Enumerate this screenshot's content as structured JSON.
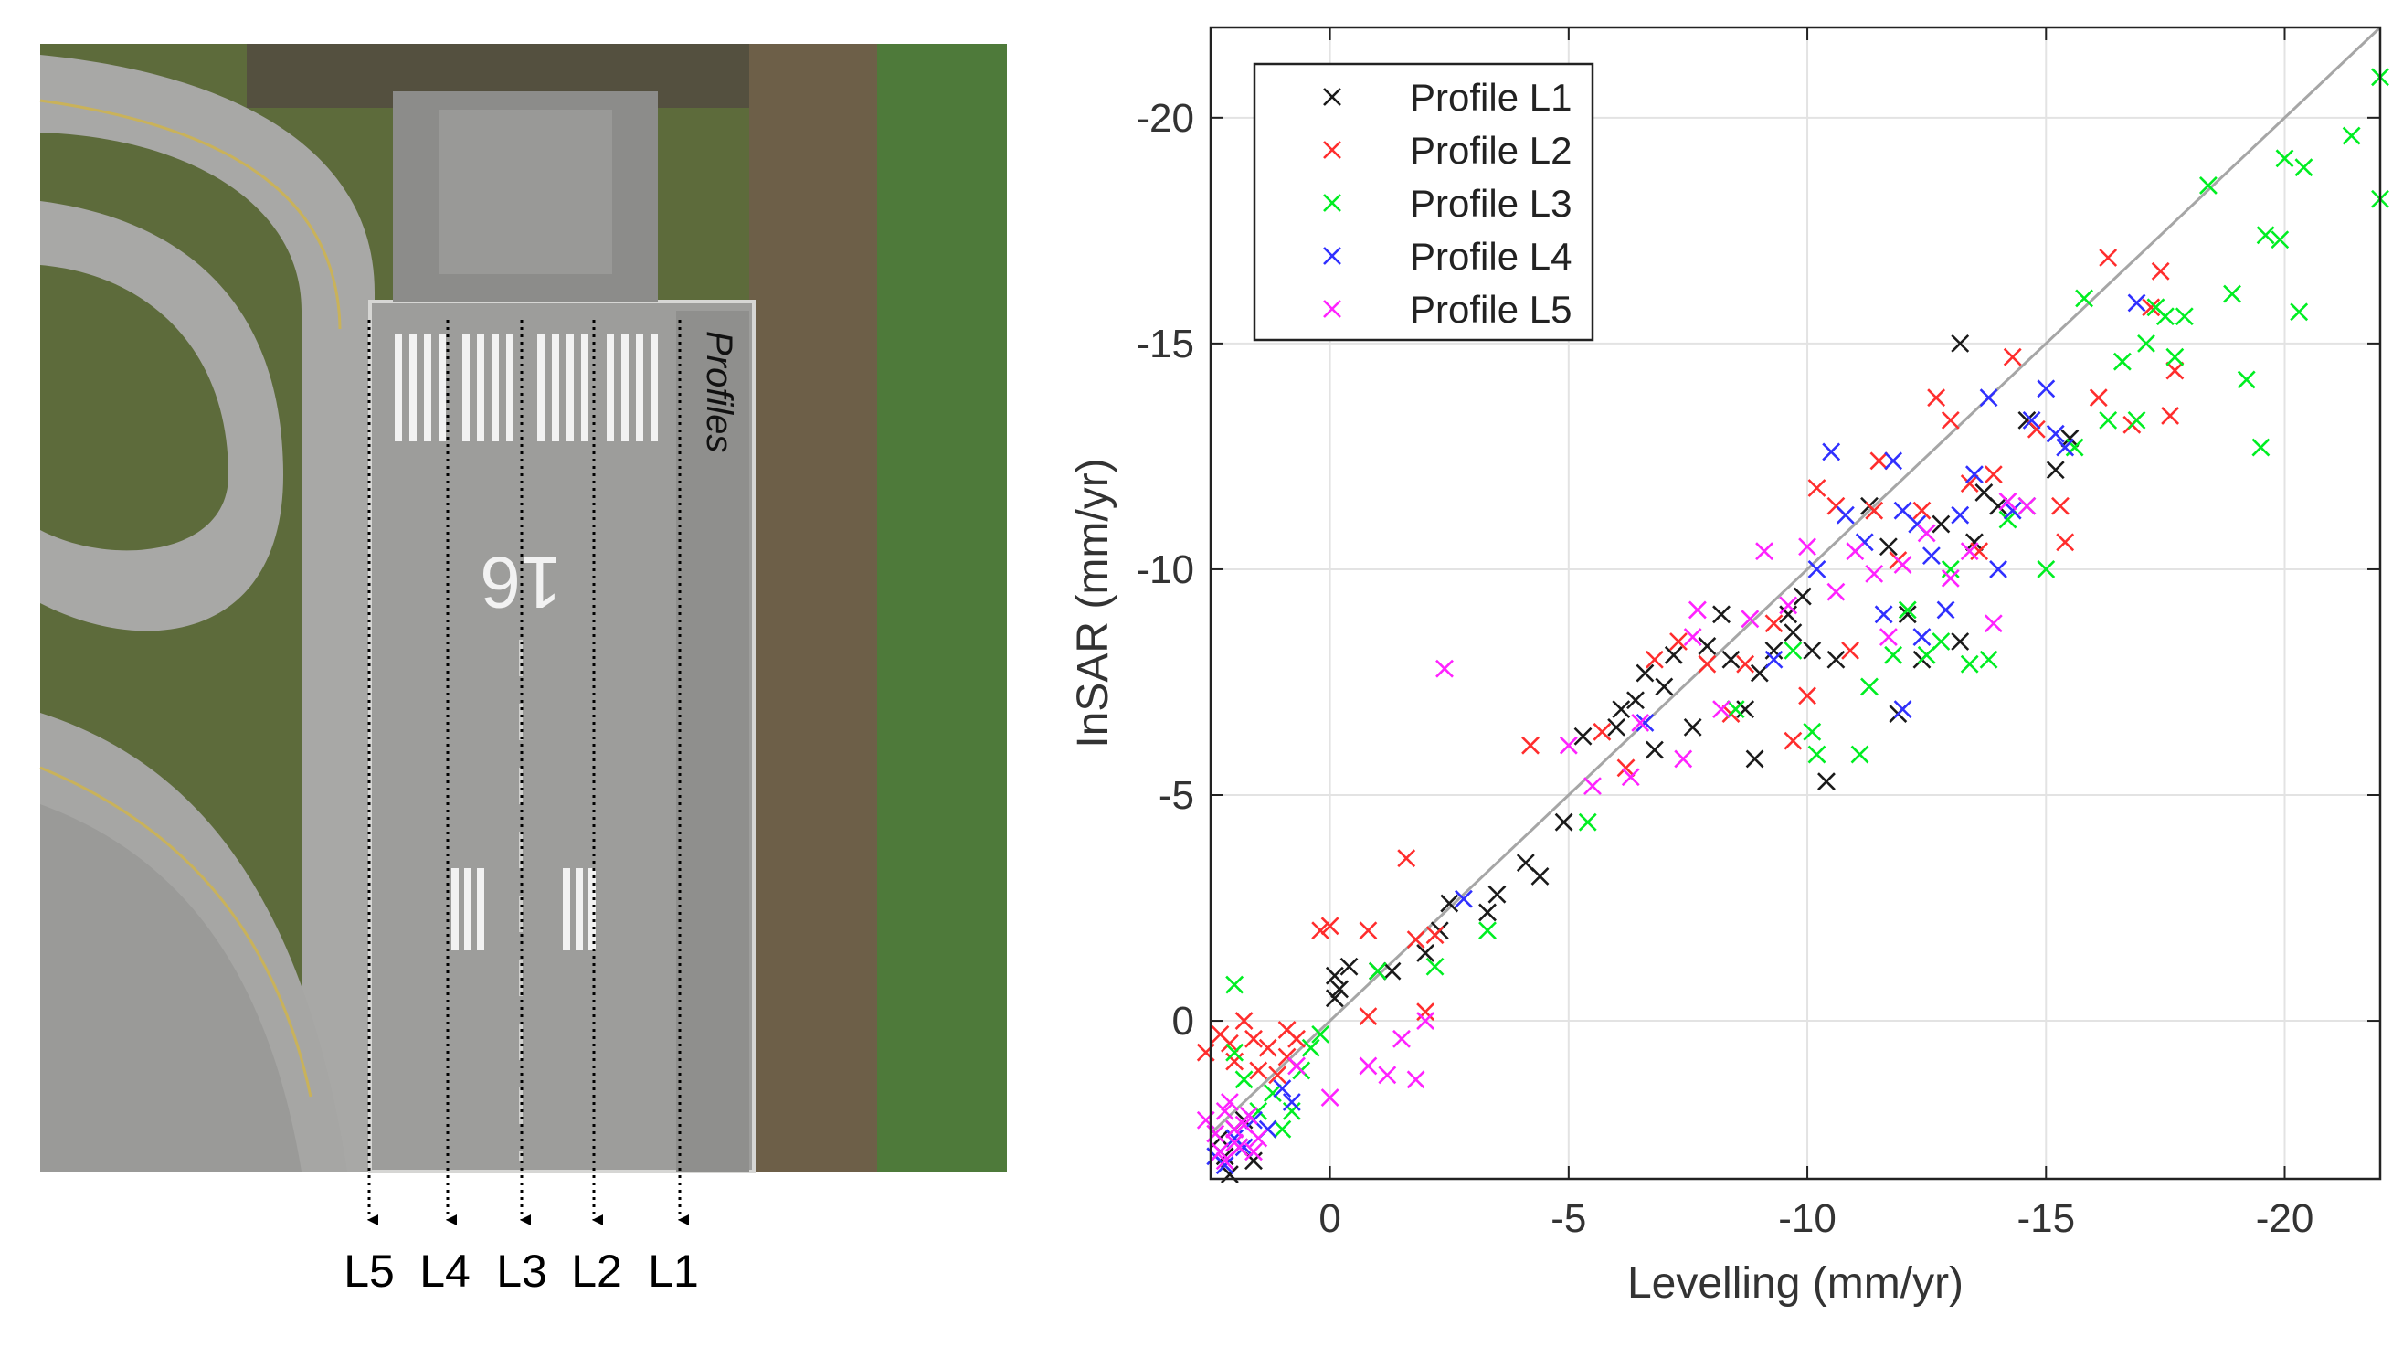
{
  "figure": {
    "profiles_label": "Profiles",
    "profile_markers": [
      "L5",
      "L4",
      "L3",
      "L2",
      "L1"
    ],
    "runway_number": "16",
    "colors": {
      "grass_dark": "#5b6a3a",
      "grass_green": "#4f7d3b",
      "soil": "#6e5e47",
      "pavement": "#a9a9a7",
      "runway": "#9c9c9a",
      "marking": "#ffffff"
    }
  },
  "chart_data": {
    "type": "scatter",
    "title": "",
    "xlabel": "Levelling (mm/yr)",
    "ylabel": "InSAR (mm/yr)",
    "xlim": [
      2.5,
      -22
    ],
    "ylim": [
      3.5,
      -22
    ],
    "xticks": [
      0,
      -5,
      -10,
      -15,
      -20
    ],
    "yticks": [
      0,
      -5,
      -10,
      -15,
      -20
    ],
    "grid": true,
    "legend_position": "top-left",
    "reference_line": {
      "from": [
        2.5,
        2.5
      ],
      "to": [
        -22,
        -22
      ],
      "color": "#a6a6a6"
    },
    "series": [
      {
        "name": "Profile L1",
        "color": "#1a1a1a",
        "points": [
          [
            2.1,
            3.4
          ],
          [
            2.2,
            3.0
          ],
          [
            1.9,
            2.8
          ],
          [
            2.3,
            2.6
          ],
          [
            1.6,
            3.1
          ],
          [
            2.0,
            2.4
          ],
          [
            1.8,
            2.2
          ],
          [
            -0.1,
            -1.0
          ],
          [
            -0.2,
            -0.7
          ],
          [
            -0.4,
            -1.2
          ],
          [
            -0.1,
            -0.5
          ],
          [
            -1.0,
            -1.1
          ],
          [
            -1.3,
            -1.1
          ],
          [
            -2.0,
            -1.5
          ],
          [
            -2.3,
            -2.0
          ],
          [
            -2.5,
            -2.6
          ],
          [
            -3.3,
            -2.4
          ],
          [
            -3.5,
            -2.8
          ],
          [
            -4.1,
            -3.5
          ],
          [
            -4.4,
            -3.2
          ],
          [
            -4.9,
            -4.4
          ],
          [
            -5.3,
            -6.3
          ],
          [
            -6.0,
            -6.5
          ],
          [
            -6.1,
            -6.9
          ],
          [
            -6.4,
            -7.1
          ],
          [
            -6.6,
            -7.7
          ],
          [
            -7.0,
            -7.4
          ],
          [
            -6.8,
            -6.0
          ],
          [
            -7.2,
            -8.1
          ],
          [
            -7.6,
            -6.5
          ],
          [
            -7.9,
            -8.3
          ],
          [
            -8.4,
            -8.0
          ],
          [
            -8.2,
            -9.0
          ],
          [
            -8.7,
            -6.9
          ],
          [
            -8.9,
            -5.8
          ],
          [
            -9.0,
            -7.7
          ],
          [
            -9.3,
            -8.2
          ],
          [
            -9.6,
            -9.0
          ],
          [
            -9.7,
            -8.6
          ],
          [
            -9.9,
            -9.4
          ],
          [
            -10.1,
            -8.2
          ],
          [
            -10.4,
            -5.3
          ],
          [
            -10.6,
            -8.0
          ],
          [
            -11.3,
            -11.4
          ],
          [
            -11.7,
            -10.5
          ],
          [
            -11.9,
            -6.8
          ],
          [
            -12.1,
            -9.0
          ],
          [
            -12.4,
            -8.0
          ],
          [
            -12.8,
            -11.0
          ],
          [
            -13.2,
            -8.4
          ],
          [
            -13.5,
            -10.6
          ],
          [
            -13.2,
            -15.0
          ],
          [
            -13.7,
            -11.7
          ],
          [
            -14.0,
            -11.4
          ],
          [
            -14.6,
            -13.3
          ],
          [
            -15.2,
            -12.2
          ],
          [
            -15.5,
            -12.9
          ]
        ]
      },
      {
        "name": "Profile L2",
        "color": "#ff2d2d",
        "points": [
          [
            2.6,
            0.7
          ],
          [
            2.3,
            0.3
          ],
          [
            2.1,
            0.5
          ],
          [
            2.0,
            0.9
          ],
          [
            1.8,
            0.0
          ],
          [
            1.6,
            0.4
          ],
          [
            1.5,
            1.1
          ],
          [
            1.3,
            0.6
          ],
          [
            1.1,
            1.2
          ],
          [
            0.9,
            0.8
          ],
          [
            0.7,
            0.4
          ],
          [
            0.9,
            0.2
          ],
          [
            0.2,
            -2.0
          ],
          [
            0.0,
            -2.1
          ],
          [
            -0.8,
            -2.0
          ],
          [
            -0.8,
            -0.1
          ],
          [
            -1.6,
            -3.6
          ],
          [
            -1.8,
            -1.8
          ],
          [
            -2.0,
            -0.2
          ],
          [
            -2.2,
            -1.9
          ],
          [
            -4.2,
            -6.1
          ],
          [
            -5.7,
            -6.4
          ],
          [
            -6.2,
            -5.6
          ],
          [
            -6.8,
            -8.0
          ],
          [
            -7.3,
            -8.4
          ],
          [
            -7.9,
            -7.9
          ],
          [
            -8.4,
            -6.8
          ],
          [
            -8.7,
            -7.9
          ],
          [
            -9.3,
            -8.8
          ],
          [
            -9.7,
            -6.2
          ],
          [
            -10.0,
            -7.2
          ],
          [
            -10.2,
            -11.8
          ],
          [
            -10.6,
            -11.4
          ],
          [
            -10.9,
            -8.2
          ],
          [
            -11.4,
            -11.3
          ],
          [
            -11.5,
            -12.4
          ],
          [
            -11.9,
            -10.2
          ],
          [
            -12.4,
            -11.3
          ],
          [
            -12.7,
            -13.8
          ],
          [
            -13.0,
            -13.3
          ],
          [
            -13.4,
            -11.9
          ],
          [
            -13.6,
            -10.4
          ],
          [
            -13.9,
            -12.1
          ],
          [
            -14.3,
            -14.7
          ],
          [
            -14.8,
            -13.1
          ],
          [
            -15.3,
            -11.4
          ],
          [
            -15.4,
            -10.6
          ],
          [
            -16.1,
            -13.8
          ],
          [
            -16.3,
            -16.9
          ],
          [
            -16.8,
            -13.2
          ],
          [
            -17.2,
            -15.8
          ],
          [
            -17.4,
            -16.6
          ],
          [
            -17.7,
            -14.4
          ],
          [
            -17.6,
            -13.4
          ]
        ]
      },
      {
        "name": "Profile L3",
        "color": "#00ee22",
        "points": [
          [
            2.0,
            -0.8
          ],
          [
            2.0,
            0.7
          ],
          [
            1.8,
            1.3
          ],
          [
            1.5,
            2.0
          ],
          [
            1.2,
            1.6
          ],
          [
            1.0,
            2.4
          ],
          [
            0.8,
            2.0
          ],
          [
            0.6,
            1.1
          ],
          [
            0.4,
            0.6
          ],
          [
            0.2,
            0.3
          ],
          [
            -1.0,
            -1.1
          ],
          [
            -2.2,
            -1.2
          ],
          [
            -3.3,
            -2.0
          ],
          [
            -5.4,
            -4.4
          ],
          [
            -8.5,
            -6.9
          ],
          [
            -9.7,
            -8.2
          ],
          [
            -10.1,
            -6.4
          ],
          [
            -10.2,
            -5.9
          ],
          [
            -11.1,
            -5.9
          ],
          [
            -11.3,
            -7.4
          ],
          [
            -11.8,
            -8.1
          ],
          [
            -12.1,
            -9.1
          ],
          [
            -12.5,
            -8.1
          ],
          [
            -12.8,
            -8.4
          ],
          [
            -13.0,
            -10.0
          ],
          [
            -13.4,
            -7.9
          ],
          [
            -13.8,
            -8.0
          ],
          [
            -14.2,
            -11.1
          ],
          [
            -14.6,
            -11.4
          ],
          [
            -15.0,
            -10.0
          ],
          [
            -15.6,
            -12.7
          ],
          [
            -15.8,
            -16.0
          ],
          [
            -16.3,
            -13.3
          ],
          [
            -16.6,
            -14.6
          ],
          [
            -16.9,
            -13.3
          ],
          [
            -17.1,
            -15.0
          ],
          [
            -17.3,
            -15.8
          ],
          [
            -17.5,
            -15.6
          ],
          [
            -17.7,
            -14.7
          ],
          [
            -17.9,
            -15.6
          ],
          [
            -18.4,
            -18.5
          ],
          [
            -18.9,
            -16.1
          ],
          [
            -19.2,
            -14.2
          ],
          [
            -19.5,
            -12.7
          ],
          [
            -19.6,
            -17.4
          ],
          [
            -19.9,
            -17.3
          ],
          [
            -20.0,
            -19.1
          ],
          [
            -20.3,
            -15.7
          ],
          [
            -20.4,
            -18.9
          ],
          [
            -21.4,
            -19.6
          ],
          [
            -22.0,
            -18.2
          ],
          [
            -22.0,
            -20.9
          ]
        ]
      },
      {
        "name": "Profile L4",
        "color": "#3030ff",
        "points": [
          [
            2.4,
            3.0
          ],
          [
            2.2,
            3.2
          ],
          [
            2.0,
            2.6
          ],
          [
            1.8,
            2.8
          ],
          [
            1.6,
            2.2
          ],
          [
            1.3,
            2.4
          ],
          [
            1.0,
            1.5
          ],
          [
            0.8,
            1.8
          ],
          [
            -2.8,
            -2.7
          ],
          [
            -6.6,
            -6.6
          ],
          [
            -9.3,
            -8.0
          ],
          [
            -10.2,
            -10.0
          ],
          [
            -10.5,
            -12.6
          ],
          [
            -10.8,
            -11.2
          ],
          [
            -11.2,
            -10.6
          ],
          [
            -11.6,
            -9.0
          ],
          [
            -11.8,
            -12.4
          ],
          [
            -12.0,
            -11.3
          ],
          [
            -12.3,
            -11.0
          ],
          [
            -12.4,
            -8.5
          ],
          [
            -12.6,
            -10.3
          ],
          [
            -12.9,
            -9.1
          ],
          [
            -13.2,
            -11.2
          ],
          [
            -13.5,
            -12.1
          ],
          [
            -13.8,
            -13.8
          ],
          [
            -14.0,
            -10.0
          ],
          [
            -14.3,
            -11.3
          ],
          [
            -14.7,
            -13.3
          ],
          [
            -15.0,
            -14.0
          ],
          [
            -15.2,
            -13.0
          ],
          [
            -15.4,
            -12.7
          ],
          [
            -16.9,
            -15.9
          ],
          [
            -12.0,
            -6.9
          ]
        ]
      },
      {
        "name": "Profile L5",
        "color": "#ff22ff",
        "points": [
          [
            2.6,
            2.2
          ],
          [
            2.4,
            2.5
          ],
          [
            2.2,
            2.0
          ],
          [
            2.0,
            2.4
          ],
          [
            1.9,
            2.8
          ],
          [
            1.7,
            2.1
          ],
          [
            1.5,
            2.6
          ],
          [
            2.3,
            2.9
          ],
          [
            2.1,
            1.8
          ],
          [
            1.8,
            2.3
          ],
          [
            2.2,
            3.1
          ],
          [
            1.6,
            2.9
          ],
          [
            2.0,
            2.7
          ],
          [
            0.7,
            1.0
          ],
          [
            0.0,
            1.7
          ],
          [
            -0.8,
            1.0
          ],
          [
            -1.2,
            1.2
          ],
          [
            -1.5,
            0.4
          ],
          [
            -1.8,
            1.3
          ],
          [
            -2.0,
            0.0
          ],
          [
            -2.4,
            -7.8
          ],
          [
            -5.0,
            -6.1
          ],
          [
            -5.5,
            -5.2
          ],
          [
            -6.3,
            -5.4
          ],
          [
            -6.5,
            -6.6
          ],
          [
            -7.4,
            -5.8
          ],
          [
            -7.6,
            -8.5
          ],
          [
            -7.7,
            -9.1
          ],
          [
            -8.2,
            -6.9
          ],
          [
            -8.8,
            -8.9
          ],
          [
            -9.1,
            -10.4
          ],
          [
            -9.6,
            -9.2
          ],
          [
            -10.0,
            -10.5
          ],
          [
            -10.6,
            -9.5
          ],
          [
            -11.0,
            -10.4
          ],
          [
            -11.4,
            -9.9
          ],
          [
            -11.7,
            -8.5
          ],
          [
            -12.0,
            -10.1
          ],
          [
            -12.5,
            -10.8
          ],
          [
            -13.0,
            -9.8
          ],
          [
            -13.4,
            -10.4
          ],
          [
            -13.9,
            -8.8
          ],
          [
            -14.2,
            -11.5
          ],
          [
            -14.6,
            -11.4
          ]
        ]
      }
    ]
  }
}
